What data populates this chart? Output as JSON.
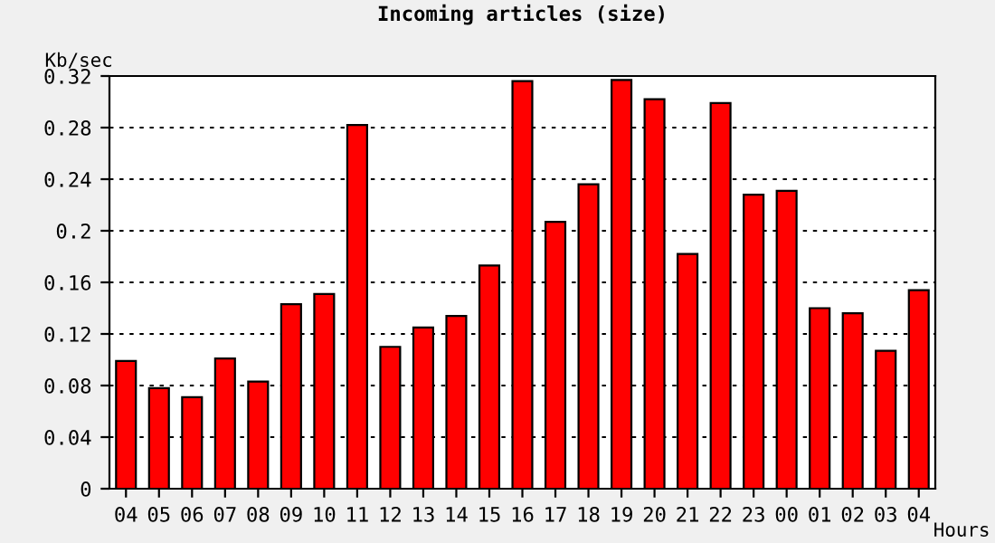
{
  "chart_data": {
    "type": "bar",
    "title": "Incoming articles (size)",
    "ylabel": "Kb/sec",
    "xlabel": "Hours",
    "categories": [
      "04",
      "05",
      "06",
      "07",
      "08",
      "09",
      "10",
      "11",
      "12",
      "13",
      "14",
      "15",
      "16",
      "17",
      "18",
      "19",
      "20",
      "21",
      "22",
      "23",
      "00",
      "01",
      "02",
      "03",
      "04"
    ],
    "values": [
      0.099,
      0.078,
      0.071,
      0.101,
      0.083,
      0.143,
      0.151,
      0.282,
      0.11,
      0.125,
      0.134,
      0.173,
      0.316,
      0.207,
      0.236,
      0.317,
      0.302,
      0.182,
      0.299,
      0.228,
      0.231,
      0.14,
      0.136,
      0.107,
      0.154
    ],
    "color": "#ff0000",
    "ylim": [
      0,
      0.32
    ],
    "yticks": [
      0,
      0.04,
      0.08,
      0.12,
      0.16,
      0.2,
      0.24,
      0.28,
      0.32
    ],
    "grid": "y"
  }
}
